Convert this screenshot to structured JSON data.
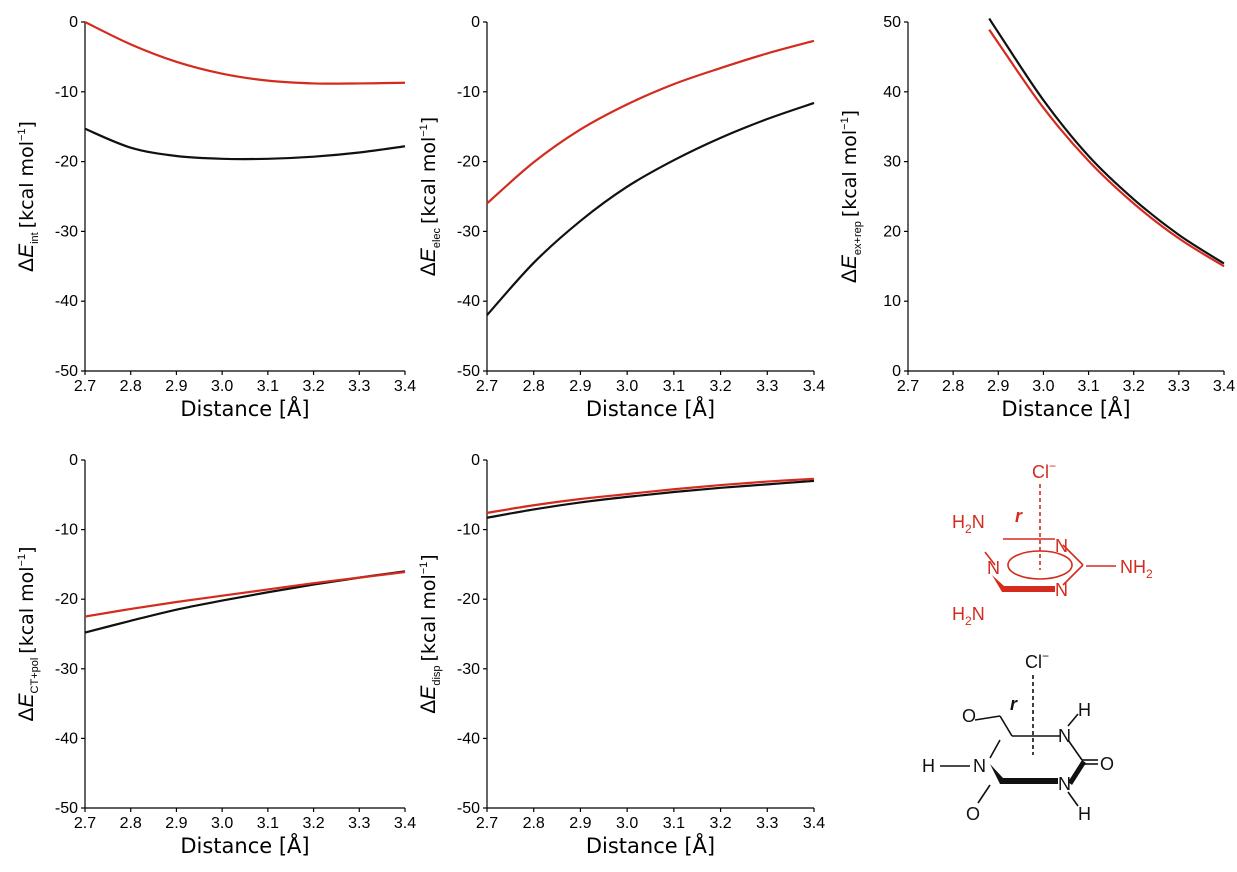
{
  "colors": {
    "black_series": "#111111",
    "red_series": "#d42b1e",
    "axis": "#000000"
  },
  "chart_data": [
    {
      "type": "line",
      "xlabel": "Distance [Å]",
      "ylabel": {
        "symbol": "ΔE",
        "subscript": "int",
        "unit": "[kcal mol",
        "unit_sup": "−1",
        "unit_close": "]"
      },
      "xlim": [
        2.7,
        3.4
      ],
      "ylim": [
        -50,
        0
      ],
      "xticks": [
        2.7,
        2.8,
        2.9,
        3.0,
        3.1,
        3.2,
        3.3,
        3.4
      ],
      "yticks": [
        -50,
        -40,
        -30,
        -20,
        -10,
        0
      ],
      "x": [
        2.7,
        2.8,
        2.9,
        3.0,
        3.1,
        3.2,
        3.3,
        3.4
      ],
      "series": [
        {
          "color": "#111111",
          "values": [
            -15.3,
            -18.0,
            -19.2,
            -19.6,
            -19.6,
            -19.3,
            -18.7,
            -17.8
          ]
        },
        {
          "color": "#d42b1e",
          "values": [
            0,
            -3.2,
            -5.7,
            -7.4,
            -8.4,
            -8.8,
            -8.8,
            -8.7
          ]
        }
      ]
    },
    {
      "type": "line",
      "xlabel": "Distance [Å]",
      "ylabel": {
        "symbol": "ΔE",
        "subscript": "elec",
        "unit": "[kcal mol",
        "unit_sup": "−1",
        "unit_close": "]"
      },
      "xlim": [
        2.7,
        3.4
      ],
      "ylim": [
        -50,
        0
      ],
      "xticks": [
        2.7,
        2.8,
        2.9,
        3.0,
        3.1,
        3.2,
        3.3,
        3.4
      ],
      "yticks": [
        -50,
        -40,
        -30,
        -20,
        -10,
        0
      ],
      "x": [
        2.7,
        2.8,
        2.9,
        3.0,
        3.1,
        3.2,
        3.3,
        3.4
      ],
      "series": [
        {
          "color": "#111111",
          "values": [
            -42.0,
            -34.5,
            -28.5,
            -23.6,
            -19.8,
            -16.6,
            -13.9,
            -11.6
          ]
        },
        {
          "color": "#d42b1e",
          "values": [
            -26.0,
            -20.1,
            -15.4,
            -11.8,
            -8.9,
            -6.6,
            -4.5,
            -2.7
          ]
        }
      ]
    },
    {
      "type": "line",
      "xlabel": "Distance [Å]",
      "ylabel": {
        "symbol": "ΔE",
        "subscript": "ex+rep",
        "unit": "[kcal mol",
        "unit_sup": "−1",
        "unit_close": "]"
      },
      "xlim": [
        2.7,
        3.4
      ],
      "ylim": [
        0,
        50
      ],
      "xticks": [
        2.7,
        2.8,
        2.9,
        3.0,
        3.1,
        3.2,
        3.3,
        3.4
      ],
      "yticks": [
        0,
        10,
        20,
        30,
        40,
        50
      ],
      "x": [
        2.88,
        2.9,
        3.0,
        3.1,
        3.2,
        3.3,
        3.4
      ],
      "series": [
        {
          "color": "#111111",
          "values": [
            50.5,
            48.5,
            38.8,
            30.8,
            24.6,
            19.5,
            15.4
          ]
        },
        {
          "color": "#d42b1e",
          "values": [
            48.9,
            47.0,
            37.7,
            30.1,
            24.0,
            19.0,
            15.0
          ]
        }
      ]
    },
    {
      "type": "line",
      "xlabel": "Distance [Å]",
      "ylabel": {
        "symbol": "ΔE",
        "subscript": "CT+pol",
        "unit": "[kcal mol",
        "unit_sup": "−1",
        "unit_close": "]"
      },
      "xlim": [
        2.7,
        3.4
      ],
      "ylim": [
        -50,
        0
      ],
      "xticks": [
        2.7,
        2.8,
        2.9,
        3.0,
        3.1,
        3.2,
        3.3,
        3.4
      ],
      "yticks": [
        -50,
        -40,
        -30,
        -20,
        -10,
        0
      ],
      "x": [
        2.7,
        2.8,
        2.9,
        3.0,
        3.1,
        3.2,
        3.3,
        3.4
      ],
      "series": [
        {
          "color": "#111111",
          "values": [
            -24.8,
            -23.1,
            -21.5,
            -20.2,
            -19.0,
            -17.9,
            -16.9,
            -16.0
          ]
        },
        {
          "color": "#d42b1e",
          "values": [
            -22.5,
            -21.4,
            -20.4,
            -19.5,
            -18.6,
            -17.7,
            -16.9,
            -16.1
          ]
        }
      ]
    },
    {
      "type": "line",
      "xlabel": "Distance [Å]",
      "ylabel": {
        "symbol": "ΔE",
        "subscript": "disp",
        "unit": "[kcal mol",
        "unit_sup": "−1",
        "unit_close": "]"
      },
      "xlim": [
        2.7,
        3.4
      ],
      "ylim": [
        -50,
        0
      ],
      "xticks": [
        2.7,
        2.8,
        2.9,
        3.0,
        3.1,
        3.2,
        3.3,
        3.4
      ],
      "yticks": [
        -50,
        -40,
        -30,
        -20,
        -10,
        0
      ],
      "x": [
        2.7,
        2.8,
        2.9,
        3.0,
        3.1,
        3.2,
        3.3,
        3.4
      ],
      "series": [
        {
          "color": "#111111",
          "values": [
            -8.3,
            -7.1,
            -6.1,
            -5.3,
            -4.6,
            -4.0,
            -3.5,
            -3.0
          ]
        },
        {
          "color": "#d42b1e",
          "values": [
            -7.6,
            -6.5,
            -5.6,
            -4.9,
            -4.2,
            -3.6,
            -3.1,
            -2.7
          ]
        }
      ]
    }
  ],
  "structures": {
    "melamine": {
      "anion": "Cl",
      "anion_charge": "−",
      "distance_label": "r",
      "nh2_left": "H",
      "nh2_left_sub": "2",
      "nh2_left_n": "N",
      "nh2_right": "NH",
      "nh2_right_sub": "2",
      "nh2_bottom": "H",
      "nh2_bottom_sub": "2",
      "nh2_bottom_n": "N",
      "ring_n": "N"
    },
    "cyanuric_acid": {
      "anion": "Cl",
      "anion_charge": "−",
      "distance_label": "r",
      "oxygen": "O",
      "nitrogen": "N",
      "hydrogen": "H"
    }
  }
}
